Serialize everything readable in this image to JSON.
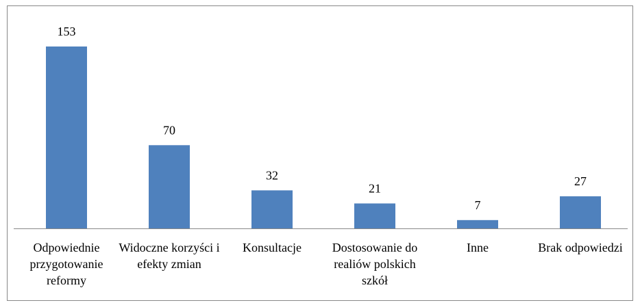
{
  "chart_data": {
    "type": "bar",
    "categories": [
      "Odpowiednie przygotowanie reformy",
      "Widoczne korzyści i efekty zmian",
      "Konsultacje",
      "Dostosowanie do realiów polskich szkół",
      "Inne",
      "Brak odpowiedzi"
    ],
    "values": [
      153,
      70,
      32,
      21,
      7,
      27
    ],
    "color": "#4f81bd"
  }
}
